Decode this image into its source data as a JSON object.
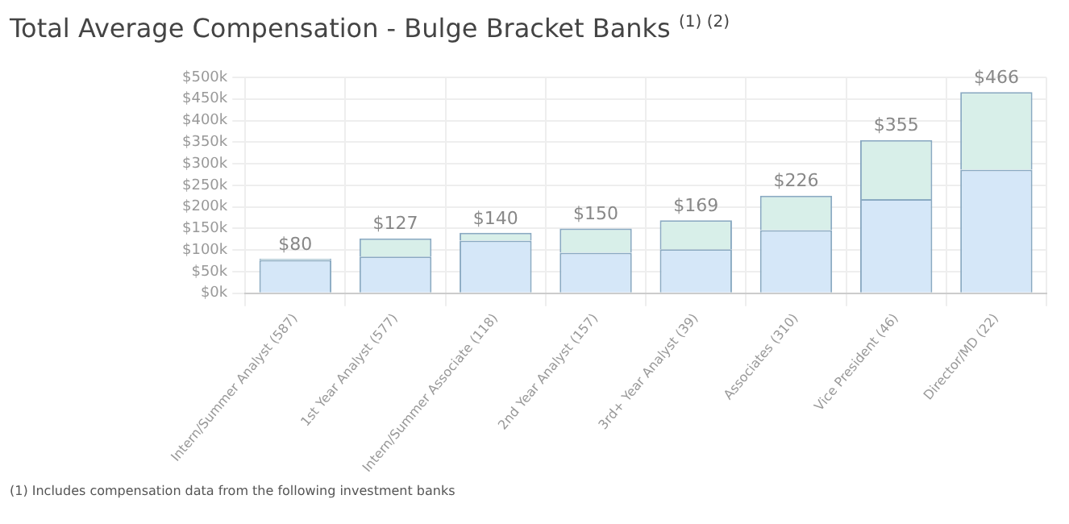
{
  "chart_data": {
    "type": "bar",
    "title": "Total Average Compensation - Bulge Bracket Banks $^{(1) (2)}$",
    "categories": [
      "Intern/Summer Analyst (587)",
      "1st Year Analyst (577)",
      "Intern/Summer Associate (118)",
      "2nd Year Analyst (157)",
      "3rd+ Year Analyst (39)",
      "Associates (310)",
      "Vice President (46)",
      "Director/MD (22)"
    ],
    "stacked": true,
    "series": [
      {
        "color": "#d5e7f8",
        "values": [
          77,
          85,
          122,
          94,
          102,
          146,
          218,
          286
        ]
      },
      {
        "color": "#d8efe9",
        "values": [
          3,
          42,
          18,
          56,
          67,
          80,
          137,
          180
        ]
      }
    ],
    "totals": [
      "$80",
      "$127",
      "$140",
      "$150",
      "$169",
      "$226",
      "$355",
      "$466"
    ],
    "ylim": [
      0,
      500
    ],
    "yticks": [
      {
        "value": 0,
        "label": "$0k"
      },
      {
        "value": 50,
        "label": "$50k"
      },
      {
        "value": 100,
        "label": "$100k"
      },
      {
        "value": 150,
        "label": "$150k"
      },
      {
        "value": 200,
        "label": "$200k"
      },
      {
        "value": 250,
        "label": "$250k"
      },
      {
        "value": 300,
        "label": "$300k"
      },
      {
        "value": 350,
        "label": "$350k"
      },
      {
        "value": 400,
        "label": "$400k"
      },
      {
        "value": 450,
        "label": "$450k"
      },
      {
        "value": 500,
        "label": "$500k"
      }
    ],
    "grid": true,
    "annotations": [
      "(1) Includes compensation data from the following investment banks"
    ]
  }
}
